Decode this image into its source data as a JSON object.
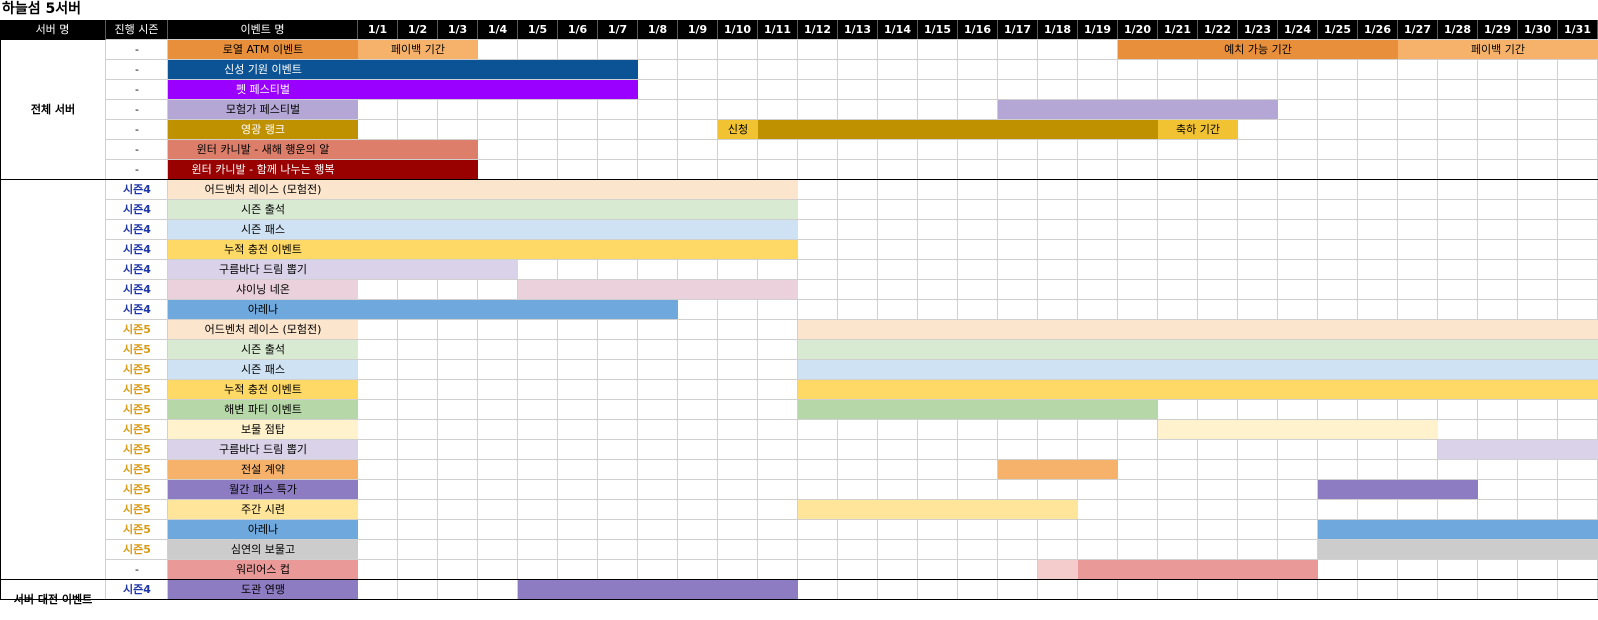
{
  "sheet_title": "하늘섬 5서버",
  "headers": {
    "server": "서버 명",
    "season": "진행 시즌",
    "event": "이벤트 명",
    "dates": [
      "1/1",
      "1/2",
      "1/3",
      "1/4",
      "1/5",
      "1/6",
      "1/7",
      "1/8",
      "1/9",
      "1/10",
      "1/11",
      "1/12",
      "1/13",
      "1/14",
      "1/15",
      "1/16",
      "1/17",
      "1/18",
      "1/19",
      "1/20",
      "1/21",
      "1/22",
      "1/23",
      "1/24",
      "1/25",
      "1/26",
      "1/27",
      "1/28",
      "1/29",
      "1/30",
      "1/31"
    ]
  },
  "groups": [
    {
      "label": "전체 서버",
      "start_row": 0,
      "end_row": 6
    },
    {
      "label": "",
      "start_row": 7,
      "end_row": 26
    },
    {
      "label": "서버 대전 이벤트",
      "start_row": 27,
      "end_row": 28
    }
  ],
  "season_colors": {
    "-": "#000000",
    "시즌4": "#1f36a8",
    "시즌5": "#d99a14"
  },
  "rows": [
    {
      "season": "-",
      "name": "로열 ATM 이벤트",
      "color": "#e88f3c",
      "bars": [
        {
          "from": 1,
          "to": 3,
          "color": "#f6b26b",
          "text": "페이백 기간"
        },
        {
          "from": 20,
          "to": 26,
          "color": "#e88f3c",
          "text": "예치 가능 기간"
        },
        {
          "from": 27,
          "to": 31,
          "color": "#f6b26b",
          "text": "페이백 기간"
        }
      ]
    },
    {
      "season": "-",
      "name": "신성 기원 이벤트",
      "color": "#0b5394",
      "text_color": "#ffffff",
      "bars": [
        {
          "from": 1,
          "to": 7,
          "color": "#0b5394",
          "text": ""
        }
      ]
    },
    {
      "season": "-",
      "name": "펫 페스티벌",
      "color": "#9900ff",
      "text_color": "#ffffff",
      "bars": [
        {
          "from": 1,
          "to": 7,
          "color": "#9900ff",
          "text": ""
        }
      ]
    },
    {
      "season": "-",
      "name": "모험가 페스티벌",
      "color": "#b4a7d6",
      "bars": [
        {
          "from": 17,
          "to": 23,
          "color": "#b4a7d6",
          "text": ""
        }
      ]
    },
    {
      "season": "-",
      "name": "영광 랭크",
      "color": "#bf9000",
      "text_color": "#ffffff",
      "bars": [
        {
          "from": 10,
          "to": 10,
          "color": "#f1c232",
          "text": "신청"
        },
        {
          "from": 11,
          "to": 20,
          "color": "#bf9000",
          "text": ""
        },
        {
          "from": 21,
          "to": 22,
          "color": "#f1c232",
          "text": "축하 기간"
        }
      ]
    },
    {
      "season": "-",
      "name": "윈터 카니발 - 새해 행운의 알",
      "color": "#dd7e6b",
      "bars": [
        {
          "from": 1,
          "to": 3,
          "color": "#dd7e6b",
          "text": ""
        }
      ]
    },
    {
      "season": "-",
      "name": "윈터 카니발 - 함께 나누는 행복",
      "color": "#990000",
      "text_color": "#ffffff",
      "bars": [
        {
          "from": 1,
          "to": 3,
          "color": "#990000",
          "text": ""
        }
      ]
    },
    {
      "season": "시즌4",
      "name": "어드벤처 레이스 (모험전)",
      "color": "#fce5cd",
      "bars": [
        {
          "from": 1,
          "to": 11,
          "color": "#fce5cd",
          "text": ""
        }
      ]
    },
    {
      "season": "시즌4",
      "name": "시즌 출석",
      "color": "#d9ead3",
      "bars": [
        {
          "from": 1,
          "to": 11,
          "color": "#d9ead3",
          "text": ""
        }
      ]
    },
    {
      "season": "시즌4",
      "name": "시즌 패스",
      "color": "#cfe2f3",
      "bars": [
        {
          "from": 1,
          "to": 11,
          "color": "#cfe2f3",
          "text": ""
        }
      ]
    },
    {
      "season": "시즌4",
      "name": "누적 충전 이벤트",
      "color": "#ffd966",
      "bars": [
        {
          "from": 1,
          "to": 11,
          "color": "#ffd966",
          "text": ""
        }
      ]
    },
    {
      "season": "시즌4",
      "name": "구름바다 드림 뽑기",
      "color": "#d9d2e9",
      "bars": [
        {
          "from": 1,
          "to": 4,
          "color": "#d9d2e9",
          "text": ""
        }
      ]
    },
    {
      "season": "시즌4",
      "name": "샤이닝 네온",
      "color": "#ead1dc",
      "bars": [
        {
          "from": 5,
          "to": 11,
          "color": "#ead1dc",
          "text": ""
        }
      ]
    },
    {
      "season": "시즌4",
      "name": "아레나",
      "color": "#6fa8dc",
      "bars": [
        {
          "from": 1,
          "to": 8,
          "color": "#6fa8dc",
          "text": ""
        }
      ]
    },
    {
      "season": "시즌5",
      "name": "어드벤처 레이스 (모험전)",
      "color": "#fce5cd",
      "bars": [
        {
          "from": 12,
          "to": 31,
          "color": "#fce5cd",
          "text": ""
        }
      ]
    },
    {
      "season": "시즌5",
      "name": "시즌 출석",
      "color": "#d9ead3",
      "bars": [
        {
          "from": 12,
          "to": 31,
          "color": "#d9ead3",
          "text": ""
        }
      ]
    },
    {
      "season": "시즌5",
      "name": "시즌 패스",
      "color": "#cfe2f3",
      "bars": [
        {
          "from": 12,
          "to": 31,
          "color": "#cfe2f3",
          "text": ""
        }
      ]
    },
    {
      "season": "시즌5",
      "name": "누적 충전 이벤트",
      "color": "#ffd966",
      "bars": [
        {
          "from": 12,
          "to": 31,
          "color": "#ffd966",
          "text": ""
        }
      ]
    },
    {
      "season": "시즌5",
      "name": "해변 파티 이벤트",
      "color": "#b6d7a8",
      "bars": [
        {
          "from": 12,
          "to": 20,
          "color": "#b6d7a8",
          "text": ""
        }
      ]
    },
    {
      "season": "시즌5",
      "name": "보물 점탑",
      "color": "#fff2cc",
      "bars": [
        {
          "from": 21,
          "to": 27,
          "color": "#fff2cc",
          "text": ""
        }
      ]
    },
    {
      "season": "시즌5",
      "name": "구름바다 드림 뽑기",
      "color": "#d9d2e9",
      "bars": [
        {
          "from": 28,
          "to": 31,
          "color": "#d9d2e9",
          "text": ""
        }
      ]
    },
    {
      "season": "시즌5",
      "name": "전설 계약",
      "color": "#f6b26b",
      "bars": [
        {
          "from": 17,
          "to": 19,
          "color": "#f6b26b",
          "text": ""
        }
      ]
    },
    {
      "season": "시즌5",
      "name": "월간 패스 특가",
      "color": "#8e7cc3",
      "bars": [
        {
          "from": 25,
          "to": 28,
          "color": "#8e7cc3",
          "text": ""
        }
      ]
    },
    {
      "season": "시즌5",
      "name": "주간 시련",
      "color": "#ffe599",
      "bars": [
        {
          "from": 12,
          "to": 18,
          "color": "#ffe599",
          "text": ""
        }
      ]
    },
    {
      "season": "시즌5",
      "name": "아레나",
      "color": "#6fa8dc",
      "bars": [
        {
          "from": 25,
          "to": 31,
          "color": "#6fa8dc",
          "text": ""
        }
      ]
    },
    {
      "season": "시즌5",
      "name": "심연의 보물고",
      "color": "#cccccc",
      "bars": [
        {
          "from": 25,
          "to": 31,
          "color": "#cccccc",
          "text": ""
        }
      ]
    },
    {
      "season": "-",
      "name": "워리어스 컵",
      "color": "#ea9999",
      "bars": [
        {
          "from": 18,
          "to": 18,
          "color": "#f4cccc",
          "text": ""
        },
        {
          "from": 19,
          "to": 24,
          "color": "#ea9999",
          "text": ""
        }
      ]
    },
    {
      "season": "시즌4",
      "name": "도관 연맹",
      "color": "#8e7cc3",
      "bars": [
        {
          "from": 5,
          "to": 11,
          "color": "#8e7cc3",
          "text": ""
        }
      ]
    }
  ]
}
